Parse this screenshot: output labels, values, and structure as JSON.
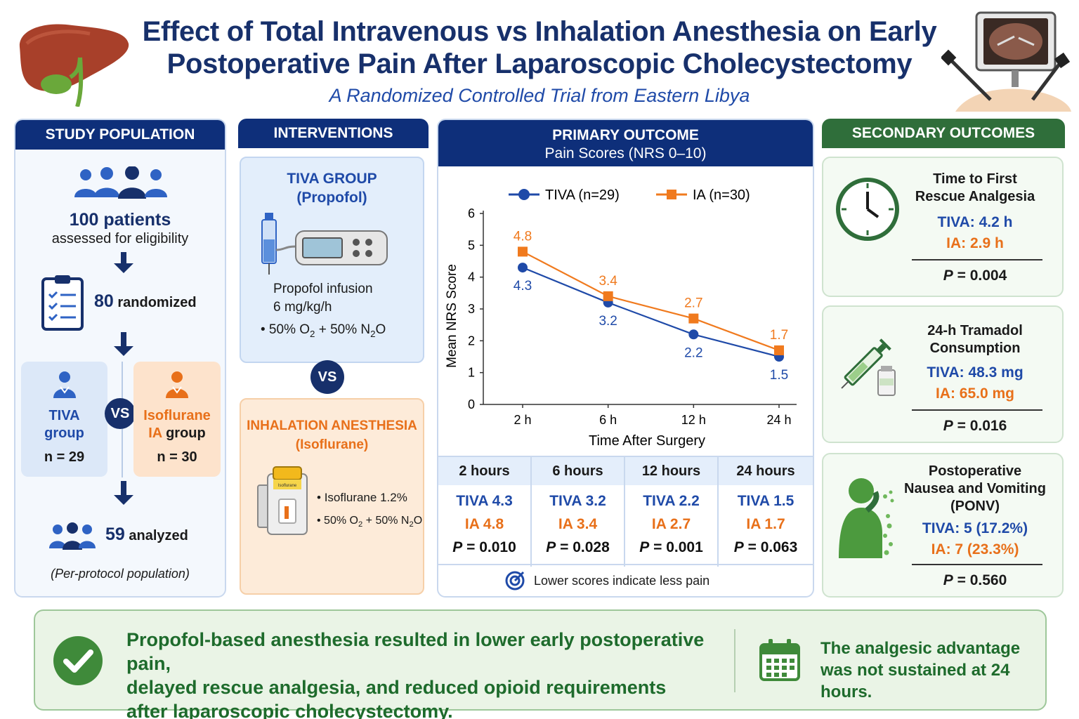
{
  "header": {
    "title_line1": "Effect of Total Intravenous vs Inhalation Anesthesia on Early",
    "title_line2": "Postoperative Pain After Laparoscopic Cholecystectomy",
    "subtitle": "A Randomized Controlled Trial from Eastern Libya"
  },
  "population": {
    "heading": "STUDY POPULATION",
    "assessed_num": "100 patients",
    "assessed_text": "assessed for eligibility",
    "randomized_num": "80",
    "randomized_text": "randomized",
    "tiva_label_1": "TIVA",
    "tiva_label_2": "group",
    "tiva_n": "n = 29",
    "vs": "VS",
    "ia_label_1": "Isoflurane",
    "ia_label_2a": "IA",
    "ia_label_2b": "group",
    "ia_n": "n = 30",
    "analyzed_num": "59",
    "analyzed_text": "analyzed",
    "note": "(Per-protocol population)"
  },
  "interventions": {
    "heading": "INTERVENTIONS",
    "tiva_title_1": "TIVA GROUP",
    "tiva_title_2": "(Propofol)",
    "tiva_drug_1": "Propofol infusion",
    "tiva_drug_2": "6 mg/kg/h",
    "vs": "VS",
    "ia_title_1": "INHALATION ANESTHESIA",
    "ia_title_2": "(Isoflurane)",
    "ia_drug": "Isoflurane 1.2%",
    "vaporizer_label": "Isoflurane"
  },
  "primary": {
    "heading_1": "PRIMARY OUTCOME",
    "heading_2": "Pain Scores (NRS 0–10)",
    "footnote": "Lower scores indicate less pain",
    "table": [
      {
        "time": "2 hours",
        "tiva": "TIVA 4.3",
        "ia": "IA  4.8",
        "p_val": "= 0.010"
      },
      {
        "time": "6 hours",
        "tiva": "TIVA 3.2",
        "ia": "IA  3.4",
        "p_val": "= 0.028"
      },
      {
        "time": "12 hours",
        "tiva": "TIVA 2.2",
        "ia": "IA  2.7",
        "p_val": "= 0.001"
      },
      {
        "time": "24 hours",
        "tiva": "TIVA 1.5",
        "ia": "IA  1.7",
        "p_val": "= 0.063"
      }
    ]
  },
  "chart_data": {
    "type": "line",
    "categories": [
      "2 h",
      "6 h",
      "12 h",
      "24 h"
    ],
    "series": [
      {
        "name": "TIVA (n=29)",
        "values": [
          4.3,
          3.2,
          2.2,
          1.5
        ],
        "color": "#1f4aa8",
        "marker": "circle"
      },
      {
        "name": "IA (n=30)",
        "values": [
          4.8,
          3.4,
          2.7,
          1.7
        ],
        "color": "#f07a1e",
        "marker": "square"
      }
    ],
    "xlabel": "Time After Surgery",
    "ylabel": "Mean NRS Score",
    "ylim": [
      0,
      6
    ],
    "yticks": [
      "0",
      "1",
      "2",
      "3",
      "4",
      "5",
      "6"
    ],
    "grid": false,
    "legend_position": "top"
  },
  "secondary": {
    "heading": "SECONDARY OUTCOMES",
    "items": [
      {
        "title_1": "Time to First",
        "title_2": "Rescue Analgesia",
        "title_3": "",
        "tiva": "TIVA: 4.2 h",
        "ia": "IA: 2.9 h",
        "p_val": "= 0.004"
      },
      {
        "title_1": "24-h Tramadol",
        "title_2": "Consumption",
        "title_3": "",
        "tiva": "TIVA: 48.3 mg",
        "ia": "IA: 65.0 mg",
        "p_val": "= 0.016"
      },
      {
        "title_1": "Postoperative",
        "title_2": "Nausea and Vomiting",
        "title_3": "(PONV)",
        "tiva": "TIVA: 5 (17.2%)",
        "ia": "IA: 7 (23.3%)",
        "p_val": "= 0.560"
      }
    ]
  },
  "conclusion": {
    "line_1": "Propofol-based anesthesia resulted in lower early postoperative pain,",
    "line_2": "delayed rescue analgesia, and reduced opioid requirements",
    "line_3": "after laparoscopic cholecystectomy.",
    "side_1": "The analgesic advantage",
    "side_2": "was not sustained at 24 hours."
  },
  "colors": {
    "navy": "#0e2f7a",
    "tiva_blue": "#1f4aa8",
    "ia_orange": "#e8701a",
    "green": "#2f6e3a"
  }
}
